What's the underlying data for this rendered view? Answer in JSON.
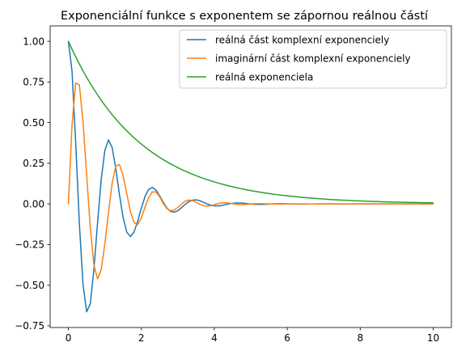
{
  "chart_data": {
    "type": "line",
    "title": "Exponenciální funkce s exponentem se zápornou reálnou částí",
    "xlabel": "",
    "ylabel": "",
    "xlim": [
      -0.5,
      10.5
    ],
    "ylim": [
      -0.76,
      1.095
    ],
    "x_ticks": [
      0,
      2,
      4,
      6,
      8,
      10
    ],
    "x_tick_labels": [
      "0",
      "2",
      "4",
      "6",
      "8",
      "10"
    ],
    "y_ticks": [
      -0.75,
      -0.5,
      -0.25,
      0.0,
      0.25,
      0.5,
      0.75,
      1.0
    ],
    "y_tick_labels": [
      "−0.75",
      "−0.50",
      "−0.25",
      "0.00",
      "0.25",
      "0.50",
      "0.75",
      "1.00"
    ],
    "grid": false,
    "legend_position": "top-right",
    "x": [
      0,
      0.1,
      0.2,
      0.3,
      0.4,
      0.5,
      0.6,
      0.7,
      0.8,
      0.9,
      1.0,
      1.1,
      1.2,
      1.3,
      1.4,
      1.5,
      1.6,
      1.7,
      1.8,
      1.9,
      2.0,
      2.1,
      2.2,
      2.3,
      2.4,
      2.5,
      2.6,
      2.7,
      2.8,
      2.9,
      3.0,
      3.1,
      3.2,
      3.3,
      3.4,
      3.5,
      3.6,
      3.7,
      3.8,
      3.9,
      4.0,
      4.1,
      4.2,
      4.3,
      4.4,
      4.5,
      4.6,
      4.7,
      4.8,
      4.9,
      5.0,
      5.1,
      5.2,
      5.3,
      5.4,
      5.5,
      5.6,
      5.7,
      5.8,
      5.9,
      6.0,
      6.1,
      6.2,
      6.3,
      6.4,
      6.5,
      6.6,
      6.7,
      6.8,
      6.9,
      7.0,
      7.1,
      7.2,
      7.3,
      7.4,
      7.5,
      7.6,
      7.7,
      7.8,
      7.9,
      8.0,
      8.1,
      8.2,
      8.3,
      8.4,
      8.5,
      8.6,
      8.7,
      8.8,
      8.9,
      9.0,
      9.1,
      9.2,
      9.3,
      9.4,
      9.5,
      9.6,
      9.7,
      9.8,
      9.9,
      10.0
    ],
    "series": [
      {
        "name": "reálná část komplexní exponenciely",
        "color": "#1f77b4",
        "values": [
          1.0,
          0.8155,
          0.3766,
          -0.1169,
          -0.4932,
          -0.6636,
          -0.6151,
          -0.4012,
          -0.1146,
          0.1511,
          0.3302,
          0.3941,
          0.3465,
          0.2165,
          0.0575,
          -0.0835,
          -0.1734,
          -0.2005,
          -0.1727,
          -0.1064,
          -0.0263,
          0.045,
          0.0897,
          0.1014,
          0.0854,
          0.0505,
          0.0104,
          -0.0249,
          -0.0459,
          -0.0508,
          -0.0417,
          -0.0233,
          -0.0032,
          0.0135,
          0.0232,
          0.0252,
          0.02,
          0.0104,
          0.0002,
          -0.0071,
          -0.0116,
          -0.0124,
          -0.0095,
          -0.0044,
          0.0009,
          0.0037,
          0.0057,
          0.006,
          0.0045,
          0.0018,
          -0.0006,
          -0.002,
          -0.0028,
          -0.0029,
          -0.0021,
          -0.0007,
          0.0004,
          0.001,
          0.0014,
          0.0014,
          0.001,
          0.0003,
          -0.0002,
          -0.0005,
          -0.0007,
          -0.0007,
          -0.0005,
          -0.0001,
          0.0001,
          0.0003,
          0.0003,
          0.0003,
          0.0002,
          0.0,
          -0.0001,
          -0.0001,
          -0.0002,
          -0.0002,
          -0.0001,
          0.0,
          0.0,
          0.0001,
          0.0001,
          0.0001,
          0.0,
          0.0,
          0.0,
          0.0,
          0.0,
          0.0,
          0.0,
          0.0,
          0.0,
          0.0,
          0.0,
          0.0,
          0.0,
          0.0,
          0.0,
          0.0,
          0.0
        ]
      },
      {
        "name": "imaginární část komplexní exponenciely",
        "color": "#ff7f0e",
        "values": [
          0.0,
          0.4856,
          0.7436,
          0.7321,
          0.5086,
          0.1787,
          -0.1467,
          -0.3757,
          -0.4614,
          -0.4042,
          -0.2454,
          -0.0482,
          0.1285,
          0.2327,
          0.2424,
          0.1731,
          0.0636,
          -0.0462,
          -0.1144,
          -0.1268,
          -0.0866,
          -0.0204,
          0.0391,
          0.0738,
          0.0739,
          0.0445,
          0.0034,
          -0.0287,
          -0.0419,
          -0.0378,
          -0.0218,
          -0.0011,
          0.0169,
          0.0239,
          0.0209,
          0.0102,
          -0.0018,
          -0.0106,
          -0.0138,
          -0.011,
          -0.0046,
          0.0021,
          0.0062,
          0.0073,
          0.0053,
          0.0016,
          -0.0015,
          -0.0034,
          -0.0036,
          -0.0024,
          -0.0004,
          0.0012,
          0.0019,
          0.0018,
          0.0011,
          0.0,
          -0.0007,
          -0.001,
          -0.0009,
          -0.0004,
          0.0,
          0.0004,
          0.0005,
          0.0004,
          0.0002,
          0.0,
          -0.0002,
          -0.0003,
          -0.0002,
          -0.0001,
          0.0,
          0.0001,
          0.0001,
          0.0001,
          0.0,
          0.0,
          0.0,
          0.0,
          0.0,
          0.0,
          0.0,
          0.0,
          0.0,
          0.0,
          0.0,
          0.0,
          0.0,
          0.0,
          0.0,
          0.0,
          0.0,
          0.0,
          0.0,
          0.0,
          0.0,
          0.0,
          0.0,
          0.0,
          0.0,
          0.0,
          0.0
        ]
      },
      {
        "name": "reálná exponenciela",
        "color": "#2ca02c",
        "values": [
          1.0,
          0.9512,
          0.9048,
          0.8607,
          0.8187,
          0.7788,
          0.7408,
          0.7047,
          0.6703,
          0.6376,
          0.6065,
          0.5769,
          0.5488,
          0.522,
          0.4966,
          0.4724,
          0.4493,
          0.4274,
          0.4066,
          0.3867,
          0.3679,
          0.3499,
          0.3329,
          0.3166,
          0.3012,
          0.2865,
          0.2725,
          0.2592,
          0.2466,
          0.2346,
          0.2231,
          0.2122,
          0.2019,
          0.192,
          0.1827,
          0.1738,
          0.1653,
          0.1572,
          0.1496,
          0.1423,
          0.1353,
          0.1287,
          0.1225,
          0.1165,
          0.1108,
          0.1054,
          0.1003,
          0.0954,
          0.0907,
          0.0863,
          0.0821,
          0.0781,
          0.0743,
          0.0707,
          0.0672,
          0.0639,
          0.0608,
          0.0578,
          0.055,
          0.0523,
          0.0498,
          0.0474,
          0.045,
          0.0429,
          0.0408,
          0.0388,
          0.0369,
          0.0351,
          0.0334,
          0.0317,
          0.0302,
          0.0287,
          0.0273,
          0.026,
          0.0247,
          0.0235,
          0.0224,
          0.0213,
          0.0202,
          0.0193,
          0.0183,
          0.0174,
          0.0166,
          0.0158,
          0.015,
          0.0143,
          0.0136,
          0.0129,
          0.0123,
          0.0117,
          0.0111,
          0.0106,
          0.0101,
          0.0096,
          0.0091,
          0.0087,
          0.0082,
          0.0078,
          0.0074,
          0.0071,
          0.0067
        ]
      }
    ]
  }
}
